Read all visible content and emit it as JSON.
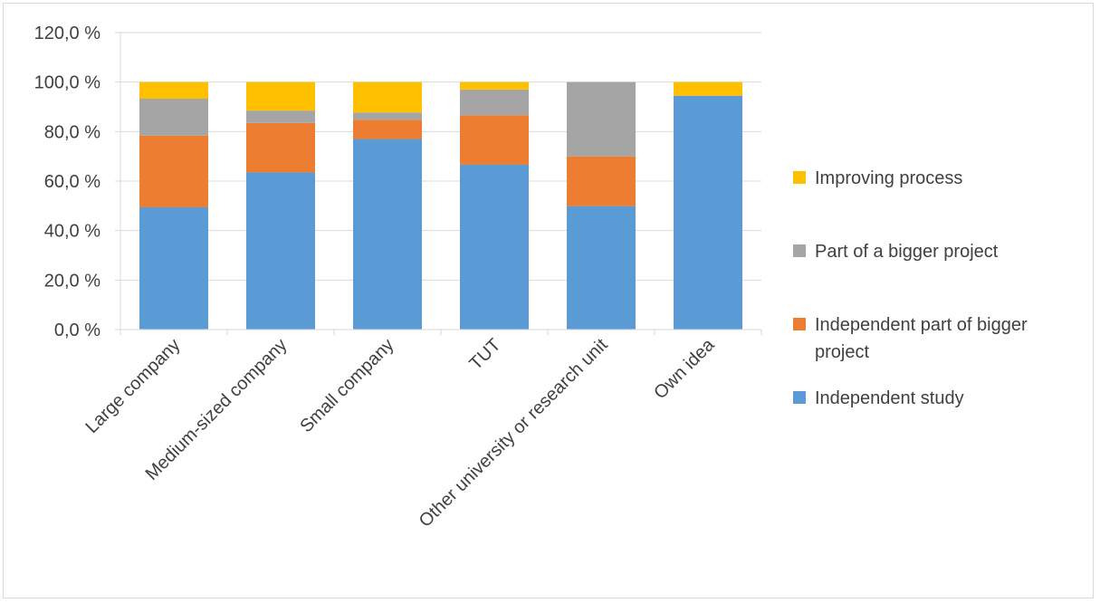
{
  "chart_data": {
    "type": "bar",
    "stacked": true,
    "categories": [
      "Large company",
      "Medium-sized company",
      "Small company",
      "TUT",
      "Other university or research unit",
      "Own idea"
    ],
    "series": [
      {
        "name": "Independent study",
        "color": "#5b9bd5",
        "values": [
          49.4,
          63.5,
          77.0,
          66.6,
          49.9,
          94.5
        ]
      },
      {
        "name": "Independent part of bigger project",
        "color": "#ed7d31",
        "values": [
          29.0,
          20.0,
          7.8,
          20.0,
          20.1,
          0.0
        ]
      },
      {
        "name": "Part of a bigger project",
        "color": "#a5a5a5",
        "values": [
          14.9,
          5.0,
          2.9,
          10.4,
          30.0,
          0.0
        ]
      },
      {
        "name": "Improving process",
        "color": "#ffc000",
        "values": [
          6.7,
          11.5,
          12.3,
          3.0,
          0.0,
          5.5
        ]
      }
    ],
    "y_ticks": [
      "0,0 %",
      "20,0 %",
      "40,0 %",
      "60,0 %",
      "80,0 %",
      "100,0 %",
      "120,0 %"
    ],
    "ylim": [
      0,
      120
    ],
    "grid": true,
    "legend_position": "right",
    "legend_order": [
      "Improving process",
      "Part of a bigger project",
      "Independent part of bigger project",
      "Independent study"
    ],
    "legend_label_lines": {
      "Improving process": [
        "Improving process"
      ],
      "Part of a bigger project": [
        "Part of a bigger project"
      ],
      "Independent part of bigger project": [
        "Independent part of bigger",
        "project"
      ],
      "Independent study": [
        "Independent study"
      ]
    }
  }
}
